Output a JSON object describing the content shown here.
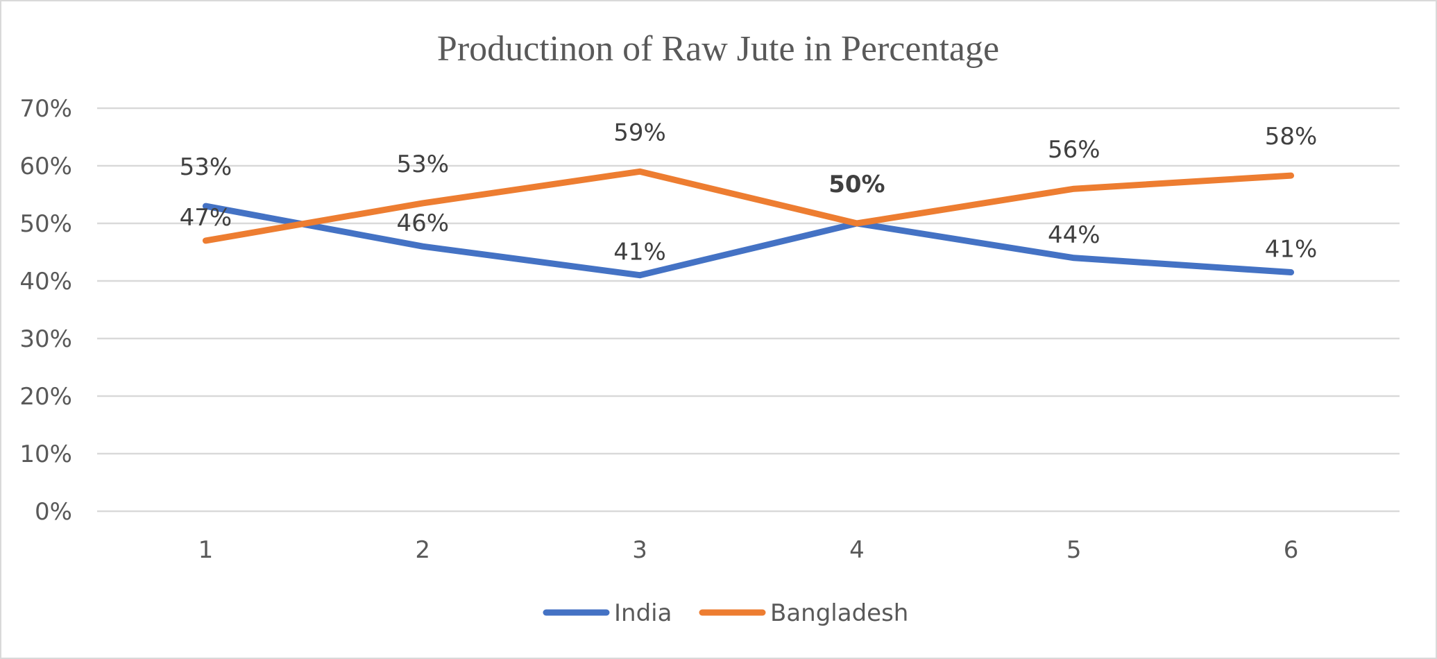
{
  "chart_data": {
    "type": "line",
    "title": "Productinon of Raw Jute in Percentage",
    "categories": [
      "1",
      "2",
      "3",
      "4",
      "5",
      "6"
    ],
    "y_ticks": [
      "0%",
      "10%",
      "20%",
      "30%",
      "40%",
      "50%",
      "60%",
      "70%"
    ],
    "ylim": [
      0,
      0.7
    ],
    "grid": true,
    "legend_position": "bottom",
    "series": [
      {
        "name": "India",
        "color": "#4472c4",
        "values": [
          0.53,
          0.46,
          0.41,
          0.5,
          0.44,
          0.415
        ],
        "labels": [
          "53%",
          "46%",
          "41%",
          "50%",
          "44%",
          "41%"
        ]
      },
      {
        "name": "Bangladesh",
        "color": "#ed7d31",
        "values": [
          0.47,
          0.535,
          0.59,
          0.5,
          0.56,
          0.583
        ],
        "labels": [
          "47%",
          "53%",
          "59%",
          "50%",
          "56%",
          "58%"
        ]
      }
    ]
  }
}
